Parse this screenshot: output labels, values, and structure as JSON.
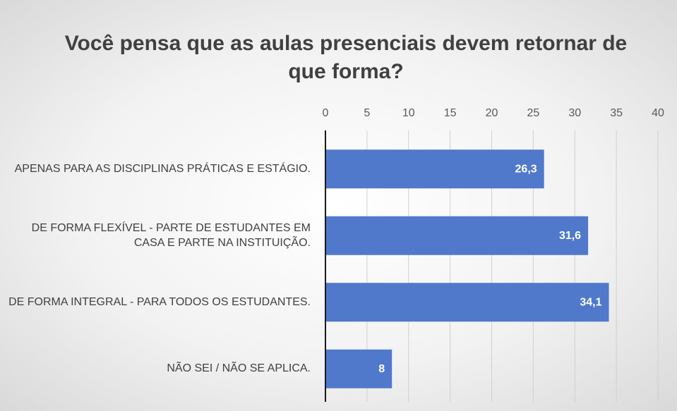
{
  "chart_data": {
    "type": "bar",
    "orientation": "horizontal",
    "title": "Você pensa que as aulas presenciais devem retornar de que forma?",
    "categories": [
      "APENAS PARA AS DISCIPLINAS PRÁTICAS E ESTÁGIO.",
      "DE FORMA FLEXÍVEL - PARTE DE ESTUDANTES EM CASA E PARTE NA INSTITUIÇÃO.",
      "DE FORMA INTEGRAL - PARA TODOS OS ESTUDANTES.",
      "NÃO SEI / NÃO SE APLICA."
    ],
    "values": [
      26.3,
      31.6,
      34.1,
      8
    ],
    "value_labels": [
      "26,3",
      "31,6",
      "34,1",
      "8"
    ],
    "color": "#5079cc",
    "xlim": [
      0,
      40
    ],
    "xticks": [
      0,
      5,
      10,
      15,
      20,
      25,
      30,
      35,
      40
    ],
    "grid": true
  }
}
